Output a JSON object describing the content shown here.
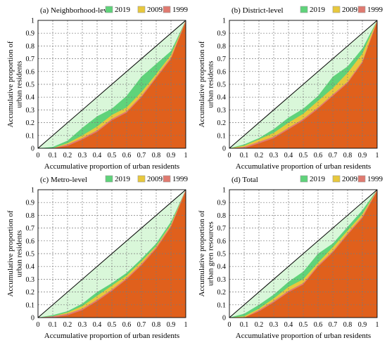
{
  "colors": {
    "y2019": "#5fd37a",
    "y2019_fill": "#d9f7d9",
    "y2009": "#e8c83c",
    "y1999": "#e07a70",
    "lorenz_fill": "#e0601c",
    "equality_line": "#000000"
  },
  "chart_data": [
    {
      "type": "area",
      "title": "(a) Neighborhood-level",
      "xlabel": "Accumulative proportion of urban residents",
      "ylabel": "Accumulative proportion of urban residents",
      "xlim": [
        0,
        1
      ],
      "ylim": [
        0,
        1
      ],
      "xticks": [
        "0",
        "0.1",
        "0.2",
        "0.3",
        "0.4",
        "0.5",
        "0.6",
        "0.7",
        "0.8",
        "0.9",
        "1"
      ],
      "yticks": [
        "0",
        "0.1",
        "0.2",
        "0.3",
        "0.4",
        "0.5",
        "0.6",
        "0.7",
        "0.8",
        "0.9",
        "1"
      ],
      "grid": true,
      "legend": "top-right",
      "x": [
        0,
        0.1,
        0.2,
        0.3,
        0.4,
        0.5,
        0.6,
        0.7,
        0.8,
        0.9,
        1
      ],
      "series": [
        {
          "name": "2019",
          "values": [
            0,
            0.01,
            0.06,
            0.16,
            0.25,
            0.31,
            0.41,
            0.56,
            0.66,
            0.76,
            1
          ]
        },
        {
          "name": "2009",
          "values": [
            0,
            0.0,
            0.04,
            0.1,
            0.17,
            0.26,
            0.32,
            0.44,
            0.58,
            0.73,
            1
          ]
        },
        {
          "name": "1999",
          "values": [
            0,
            0.0,
            0.03,
            0.08,
            0.14,
            0.23,
            0.29,
            0.41,
            0.56,
            0.71,
            1
          ]
        }
      ]
    },
    {
      "type": "area",
      "title": "(b) District-level",
      "xlabel": "Accumulative proportion of urban residents",
      "ylabel": "Accumulative proportion of urban residents",
      "xlim": [
        0,
        1
      ],
      "ylim": [
        0,
        1
      ],
      "xticks": [
        "0",
        "0.1",
        "0.2",
        "0.3",
        "0.4",
        "0.5",
        "0.6",
        "0.7",
        "0.8",
        "0.9",
        "1"
      ],
      "yticks": [
        "0",
        "0.1",
        "0.2",
        "0.3",
        "0.4",
        "0.5",
        "0.6",
        "0.7",
        "0.8",
        "0.9",
        "1"
      ],
      "grid": true,
      "legend": "top-right",
      "x": [
        0,
        0.1,
        0.2,
        0.3,
        0.4,
        0.5,
        0.6,
        0.7,
        0.8,
        0.9,
        1
      ],
      "series": [
        {
          "name": "2019",
          "values": [
            0,
            0.03,
            0.08,
            0.15,
            0.24,
            0.31,
            0.41,
            0.56,
            0.64,
            0.78,
            1
          ]
        },
        {
          "name": "2009",
          "values": [
            0,
            0.02,
            0.07,
            0.12,
            0.2,
            0.27,
            0.37,
            0.47,
            0.59,
            0.74,
            1
          ]
        },
        {
          "name": "1999",
          "values": [
            0,
            0.01,
            0.05,
            0.09,
            0.16,
            0.23,
            0.32,
            0.42,
            0.52,
            0.68,
            1
          ]
        }
      ]
    },
    {
      "type": "area",
      "title": "(c) Metro-level",
      "xlabel": "Accumulative proportion of urban residents",
      "ylabel": "Accumulative proportion of urban residents",
      "xlim": [
        0,
        1
      ],
      "ylim": [
        0,
        1
      ],
      "xticks": [
        "0",
        "0.1",
        "0.2",
        "0.3",
        "0.4",
        "0.5",
        "0.6",
        "0.7",
        "0.8",
        "0.9",
        "1"
      ],
      "yticks": [
        "0",
        "0.1",
        "0.2",
        "0.3",
        "0.4",
        "0.5",
        "0.6",
        "0.7",
        "0.8",
        "0.9",
        "1"
      ],
      "grid": true,
      "legend": "top-right",
      "x": [
        0,
        0.1,
        0.2,
        0.3,
        0.4,
        0.5,
        0.6,
        0.7,
        0.8,
        0.9,
        1
      ],
      "series": [
        {
          "name": "2019",
          "values": [
            0,
            0.02,
            0.05,
            0.11,
            0.2,
            0.27,
            0.35,
            0.46,
            0.58,
            0.75,
            1
          ]
        },
        {
          "name": "2009",
          "values": [
            0,
            0.01,
            0.04,
            0.09,
            0.17,
            0.25,
            0.33,
            0.44,
            0.56,
            0.73,
            1
          ]
        },
        {
          "name": "1999",
          "values": [
            0,
            0.01,
            0.03,
            0.07,
            0.14,
            0.22,
            0.31,
            0.42,
            0.55,
            0.72,
            1
          ]
        }
      ]
    },
    {
      "type": "area",
      "title": "(d) Total",
      "xlabel": "Accumulative proportion of urban residents",
      "ylabel": "Accumulative proportion of urban gren resources",
      "xlim": [
        0,
        1
      ],
      "ylim": [
        0,
        1
      ],
      "xticks": [
        "0",
        "0.1",
        "0.2",
        "0.3",
        "0.4",
        "0.5",
        "0.6",
        "0.7",
        "0.8",
        "0.9",
        "1"
      ],
      "yticks": [
        "0",
        "0.1",
        "0.2",
        "0.3",
        "0.4",
        "0.5",
        "0.6",
        "0.7",
        "0.8",
        "0.9",
        "1"
      ],
      "grid": true,
      "legend": "top-right",
      "x": [
        0,
        0.1,
        0.2,
        0.3,
        0.4,
        0.5,
        0.6,
        0.7,
        0.8,
        0.9,
        1
      ],
      "series": [
        {
          "name": "2019",
          "values": [
            0,
            0.03,
            0.1,
            0.18,
            0.28,
            0.36,
            0.5,
            0.58,
            0.71,
            0.84,
            1
          ]
        },
        {
          "name": "2009",
          "values": [
            0,
            0.01,
            0.07,
            0.15,
            0.24,
            0.3,
            0.43,
            0.55,
            0.68,
            0.81,
            1
          ]
        },
        {
          "name": "1999",
          "values": [
            0,
            0.0,
            0.06,
            0.13,
            0.21,
            0.27,
            0.41,
            0.52,
            0.66,
            0.79,
            1
          ]
        }
      ]
    }
  ]
}
